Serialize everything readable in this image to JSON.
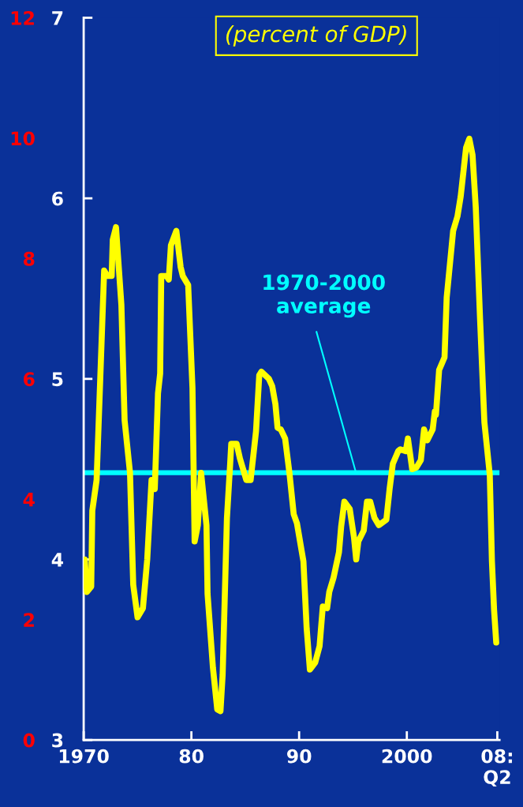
{
  "chart_data": {
    "type": "line",
    "title": "(percent of GDP)",
    "x": [
      1970.1,
      1970.3,
      1970.7,
      1970.8,
      1971.2,
      1971.9,
      1972.2,
      1972.6,
      1972.7,
      1973.0,
      1973.5,
      1973.8,
      1974.3,
      1974.6,
      1975.0,
      1975.5,
      1975.9,
      1976.3,
      1976.6,
      1976.9,
      1977.1,
      1977.2,
      1977.7,
      1977.9,
      1978.1,
      1978.6,
      1979.0,
      1979.2,
      1979.7,
      1980.1,
      1980.3,
      1980.6,
      1980.9,
      1981.4,
      1981.5,
      1982.0,
      1982.4,
      1982.7,
      1982.9,
      1983.3,
      1983.6,
      1983.7,
      1984.2,
      1984.5,
      1984.7,
      1985.1,
      1985.5,
      1986.0,
      1986.3,
      1986.5,
      1987.2,
      1987.5,
      1987.8,
      1988.0,
      1988.3,
      1988.7,
      1989.1,
      1989.5,
      1989.8,
      1990.4,
      1990.7,
      1991.0,
      1991.5,
      1991.9,
      1992.2,
      1992.6,
      1992.8,
      1993.2,
      1993.7,
      1993.9,
      1994.2,
      1994.7,
      1995.1,
      1995.3,
      1995.5,
      1996.0,
      1996.3,
      1996.6,
      1997.0,
      1997.4,
      1998.1,
      1998.4,
      1998.7,
      1999.2,
      1999.4,
      1999.9,
      2000.1,
      2000.5,
      2000.9,
      2001.3,
      2001.6,
      2001.9,
      2002.4,
      2002.6,
      2002.7,
      2003.0,
      2003.5,
      2003.7,
      2004.3,
      2004.7,
      2005.0,
      2005.5,
      2005.8,
      2006.1,
      2006.4,
      2006.8,
      2007.2,
      2007.7,
      2007.9,
      2008.1,
      2008.3
    ],
    "series": [
      {
        "color": "#ffff00",
        "values": [
          4.0,
          3.82,
          3.85,
          4.27,
          4.44,
          5.6,
          5.57,
          5.57,
          5.77,
          5.84,
          5.41,
          4.77,
          4.48,
          3.86,
          3.68,
          3.73,
          4.0,
          4.44,
          4.39,
          4.92,
          5.03,
          5.57,
          5.57,
          5.55,
          5.74,
          5.82,
          5.62,
          5.57,
          5.52,
          4.95,
          4.1,
          4.19,
          4.48,
          4.19,
          3.81,
          3.4,
          3.17,
          3.16,
          3.36,
          4.23,
          4.53,
          4.64,
          4.64,
          4.56,
          4.52,
          4.44,
          4.44,
          4.71,
          5.02,
          5.04,
          5.0,
          4.96,
          4.86,
          4.73,
          4.72,
          4.67,
          4.48,
          4.25,
          4.2,
          3.99,
          3.62,
          3.39,
          3.43,
          3.52,
          3.74,
          3.73,
          3.82,
          3.9,
          4.04,
          4.18,
          4.32,
          4.28,
          4.12,
          4.0,
          4.1,
          4.16,
          4.32,
          4.32,
          4.23,
          4.19,
          4.22,
          4.39,
          4.53,
          4.6,
          4.61,
          4.6,
          4.67,
          4.5,
          4.51,
          4.55,
          4.72,
          4.66,
          4.72,
          4.82,
          4.8,
          5.05,
          5.12,
          5.45,
          5.82,
          5.9,
          6.01,
          6.28,
          6.33,
          6.24,
          5.95,
          5.33,
          4.76,
          4.47,
          3.99,
          3.72,
          3.54
        ]
      }
    ],
    "xlim": [
      1970,
      2008.6
    ],
    "xticks": [
      {
        "value": 1970,
        "label": "1970"
      },
      {
        "value": 1980,
        "label": "80"
      },
      {
        "value": 1990,
        "label": "90"
      },
      {
        "value": 2000,
        "label": "2000"
      },
      {
        "value": 2008.4,
        "label": "08:\nQ2"
      }
    ],
    "ylim": [
      3,
      7
    ],
    "yticks": [
      3,
      4,
      5,
      6,
      7
    ],
    "y2lim": [
      0,
      12
    ],
    "y2ticks": [
      0,
      2,
      4,
      6,
      8,
      10,
      12
    ],
    "ref_lines": [
      {
        "axis": "y",
        "value": 4.48,
        "label": "1970-2000\naverage",
        "color": "#00ffff"
      }
    ],
    "grid": false,
    "marker": "none",
    "line_style": "solid"
  }
}
